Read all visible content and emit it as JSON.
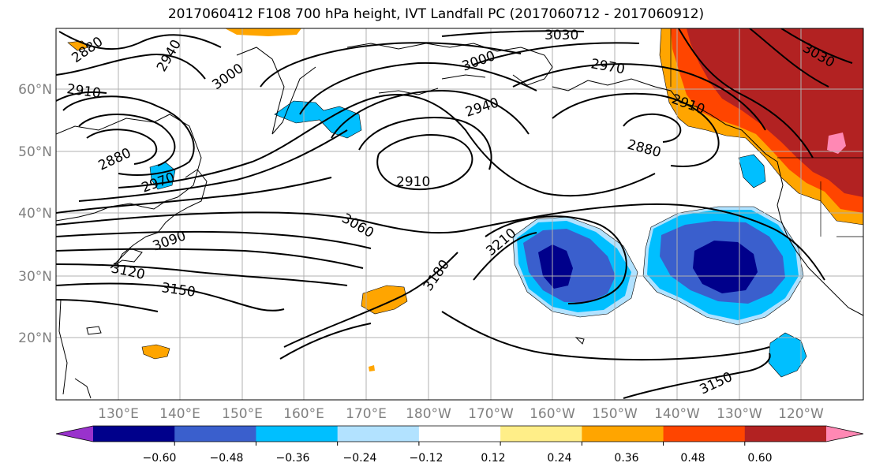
{
  "title": "2017060412 F108 700 hPa height, IVT Landfall PC (2017060712 - 2017060912)",
  "lat_labels": [
    "60°N",
    "50°N",
    "40°N",
    "30°N",
    "20°N"
  ],
  "lon_labels": [
    "130°E",
    "140°E",
    "150°E",
    "160°E",
    "170°E",
    "180°W",
    "170°W",
    "160°W",
    "150°W",
    "140°W",
    "130°W",
    "120°W"
  ],
  "contour_labels": [
    "2880",
    "2940",
    "3030",
    "3000",
    "2970",
    "2910",
    "3000",
    "2940",
    "2910",
    "2880",
    "2880",
    "2970",
    "2910",
    "3060",
    "3090",
    "3120",
    "3150",
    "3210",
    "3180",
    "3150",
    "3030"
  ],
  "colorbar": {
    "tick_labels": [
      "−0.60",
      "−0.48",
      "−0.36",
      "−0.24",
      "−0.12",
      "0.12",
      "0.24",
      "0.36",
      "0.48",
      "0.60"
    ],
    "colors": [
      "#9932cc",
      "#00008b",
      "#3a5fcd",
      "#00bfff",
      "#b2e2ff",
      "#ffffff",
      "#ffee88",
      "#ffa500",
      "#ff4500",
      "#b22222",
      "#ff88b4"
    ]
  }
}
